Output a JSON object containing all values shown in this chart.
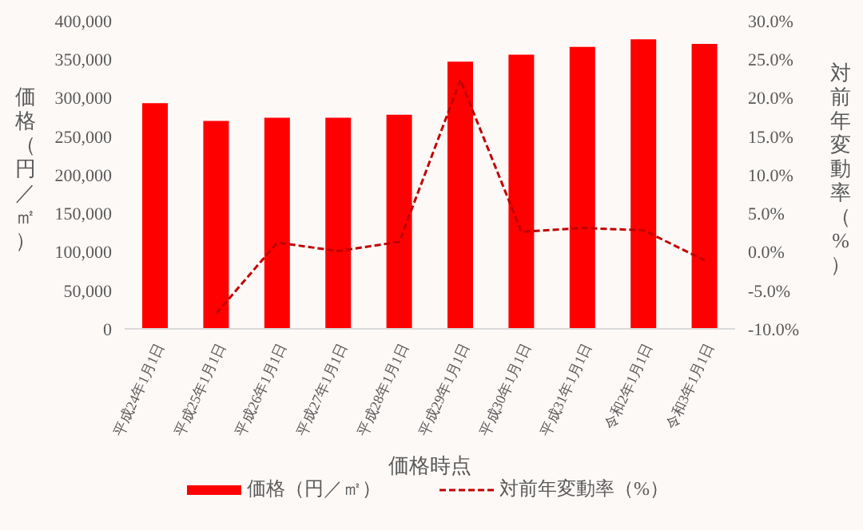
{
  "chart_data": {
    "type": "bar",
    "xlabel": "価格時点",
    "ylabel": "価格（円／㎡）",
    "y2label": "対前年変動率（%）",
    "categories": [
      "平成24年1月1日",
      "平成25年1月1日",
      "平成26年1月1日",
      "平成27年1月1日",
      "平成28年1月1日",
      "平成29年1月1日",
      "平成30年1月1日",
      "平成31年1月1日",
      "令和2年1月1日",
      "令和3年1月1日"
    ],
    "series": [
      {
        "name": "価格（円／㎡）",
        "color": "#ff0000",
        "values": [
          293000,
          270000,
          274000,
          274000,
          278000,
          347000,
          356000,
          366000,
          376000,
          370000
        ]
      },
      {
        "name": "対前年変動率（%）",
        "type": "line",
        "axis": "y2",
        "line_style": "dashed",
        "color": "#c00000",
        "values": [
          null,
          -8.0,
          1.2,
          0.1,
          1.3,
          22.3,
          2.6,
          3.1,
          2.8,
          -1.1
        ]
      }
    ],
    "ylim": [
      0,
      400000
    ],
    "yticks": [
      {
        "value": 0,
        "label": "0"
      },
      {
        "value": 50000,
        "label": "50,000"
      },
      {
        "value": 100000,
        "label": "100,000"
      },
      {
        "value": 150000,
        "label": "150,000"
      },
      {
        "value": 200000,
        "label": "200,000"
      },
      {
        "value": 250000,
        "label": "250,000"
      },
      {
        "value": 300000,
        "label": "300,000"
      },
      {
        "value": 350000,
        "label": "350,000"
      },
      {
        "value": 400000,
        "label": "400,000"
      }
    ],
    "y2lim": [
      -10,
      30
    ],
    "y2ticks": [
      {
        "value": -10,
        "label": "-10.0%"
      },
      {
        "value": -5,
        "label": "-5.0%"
      },
      {
        "value": 0,
        "label": "0.0%"
      },
      {
        "value": 5,
        "label": "5.0%"
      },
      {
        "value": 10,
        "label": "10.0%"
      },
      {
        "value": 15,
        "label": "15.0%"
      },
      {
        "value": 20,
        "label": "20.0%"
      },
      {
        "value": 25,
        "label": "25.0%"
      },
      {
        "value": 30,
        "label": "30.0%"
      }
    ],
    "legend": "bottom"
  }
}
